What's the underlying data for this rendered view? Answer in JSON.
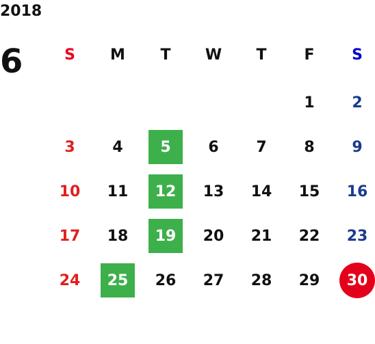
{
  "calendar": {
    "year": "2018",
    "month": "6",
    "weekdays": [
      {
        "label": "S",
        "color": "#e8001c"
      },
      {
        "label": "M",
        "color": "#111111"
      },
      {
        "label": "T",
        "color": "#111111"
      },
      {
        "label": "W",
        "color": "#111111"
      },
      {
        "label": "T",
        "color": "#111111"
      },
      {
        "label": "F",
        "color": "#111111"
      },
      {
        "label": "S",
        "color": "#0000cc"
      }
    ],
    "colors": {
      "sunday": "#e02020",
      "saturday": "#1a3c8f",
      "weekday": "#111111",
      "highlight_green": "#3db04b",
      "highlight_red": "#e3001b",
      "highlight_text": "#ffffff"
    },
    "weeks": [
      [
        {
          "day": "",
          "type": "sun"
        },
        {
          "day": "",
          "type": "wd"
        },
        {
          "day": "",
          "type": "wd"
        },
        {
          "day": "",
          "type": "wd"
        },
        {
          "day": "",
          "type": "wd"
        },
        {
          "day": "1",
          "type": "wd"
        },
        {
          "day": "2",
          "type": "sat"
        }
      ],
      [
        {
          "day": "3",
          "type": "sun"
        },
        {
          "day": "4",
          "type": "wd"
        },
        {
          "day": "5",
          "type": "wd",
          "highlight": "green"
        },
        {
          "day": "6",
          "type": "wd"
        },
        {
          "day": "7",
          "type": "wd"
        },
        {
          "day": "8",
          "type": "wd"
        },
        {
          "day": "9",
          "type": "sat"
        }
      ],
      [
        {
          "day": "10",
          "type": "sun"
        },
        {
          "day": "11",
          "type": "wd"
        },
        {
          "day": "12",
          "type": "wd",
          "highlight": "green"
        },
        {
          "day": "13",
          "type": "wd"
        },
        {
          "day": "14",
          "type": "wd"
        },
        {
          "day": "15",
          "type": "wd"
        },
        {
          "day": "16",
          "type": "sat"
        }
      ],
      [
        {
          "day": "17",
          "type": "sun"
        },
        {
          "day": "18",
          "type": "wd"
        },
        {
          "day": "19",
          "type": "wd",
          "highlight": "green"
        },
        {
          "day": "20",
          "type": "wd"
        },
        {
          "day": "21",
          "type": "wd"
        },
        {
          "day": "22",
          "type": "wd"
        },
        {
          "day": "23",
          "type": "sat"
        }
      ],
      [
        {
          "day": "24",
          "type": "sun"
        },
        {
          "day": "25",
          "type": "wd",
          "highlight": "green"
        },
        {
          "day": "26",
          "type": "wd"
        },
        {
          "day": "27",
          "type": "wd"
        },
        {
          "day": "28",
          "type": "wd"
        },
        {
          "day": "29",
          "type": "wd"
        },
        {
          "day": "30",
          "type": "sat",
          "highlight": "red-circle"
        }
      ]
    ]
  }
}
